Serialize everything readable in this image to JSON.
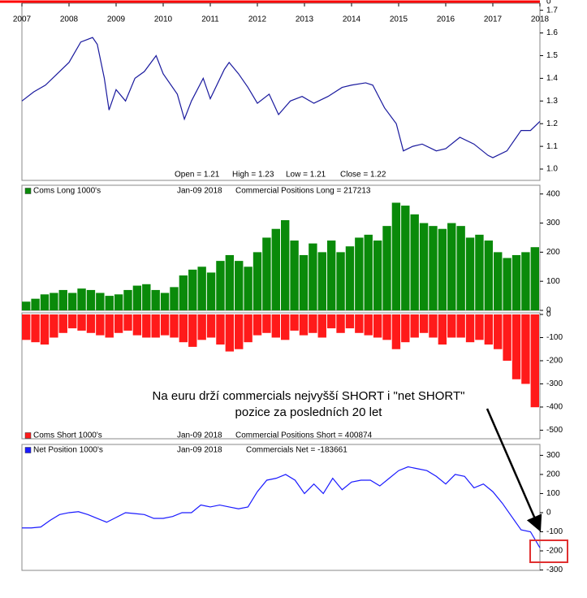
{
  "chart_data": [
    {
      "type": "line",
      "ylim": [
        0,
        1
      ],
      "yticks": [
        0
      ],
      "color": "#ff0000"
    },
    {
      "type": "line",
      "color": "#1a1a9e",
      "x": [
        2007.0,
        2007.25,
        2007.5,
        2007.75,
        2008.0,
        2008.25,
        2008.5,
        2008.6,
        2008.75,
        2008.85,
        2009.0,
        2009.2,
        2009.4,
        2009.6,
        2009.85,
        2010.0,
        2010.3,
        2010.45,
        2010.6,
        2010.85,
        2011.0,
        2011.3,
        2011.4,
        2011.6,
        2011.8,
        2012.0,
        2012.25,
        2012.45,
        2012.7,
        2012.95,
        2013.2,
        2013.5,
        2013.8,
        2014.0,
        2014.3,
        2014.45,
        2014.7,
        2014.95,
        2015.1,
        2015.3,
        2015.5,
        2015.8,
        2016.0,
        2016.3,
        2016.6,
        2016.9,
        2017.0,
        2017.3,
        2017.6,
        2017.8,
        2018.0
      ],
      "values": [
        1.3,
        1.34,
        1.37,
        1.42,
        1.47,
        1.56,
        1.58,
        1.55,
        1.4,
        1.26,
        1.35,
        1.3,
        1.4,
        1.43,
        1.5,
        1.42,
        1.33,
        1.22,
        1.3,
        1.4,
        1.31,
        1.44,
        1.47,
        1.42,
        1.36,
        1.29,
        1.33,
        1.24,
        1.3,
        1.32,
        1.29,
        1.32,
        1.36,
        1.37,
        1.38,
        1.37,
        1.27,
        1.2,
        1.08,
        1.1,
        1.11,
        1.08,
        1.09,
        1.14,
        1.11,
        1.06,
        1.05,
        1.08,
        1.17,
        1.17,
        1.21
      ],
      "xlim": [
        2007,
        2018
      ],
      "xticks": [
        2007,
        2008,
        2009,
        2010,
        2011,
        2012,
        2013,
        2014,
        2015,
        2016,
        2017,
        2018
      ],
      "ylim": [
        0.95,
        1.731
      ],
      "yticks": [
        {
          "value": 1,
          "label": "1.0"
        },
        1.1,
        1.2,
        1.3,
        1.4,
        1.5,
        1.6,
        1.7
      ],
      "annotations": [
        "Open = 1.21",
        "High = 1.23",
        "Low = 1.21",
        "Close = 1.22"
      ]
    },
    {
      "type": "bar",
      "xlim": [
        2007,
        2018.2
      ],
      "x": [
        2007.0,
        2007.2,
        2007.4,
        2007.6,
        2007.8,
        2008.0,
        2008.2,
        2008.4,
        2008.6,
        2008.8,
        2009.0,
        2009.2,
        2009.4,
        2009.6,
        2009.8,
        2010.0,
        2010.2,
        2010.4,
        2010.6,
        2010.8,
        2011.0,
        2011.2,
        2011.4,
        2011.6,
        2011.8,
        2012.0,
        2012.2,
        2012.4,
        2012.6,
        2012.8,
        2013.0,
        2013.2,
        2013.4,
        2013.6,
        2013.8,
        2014.0,
        2014.2,
        2014.4,
        2014.6,
        2014.8,
        2015.0,
        2015.2,
        2015.4,
        2015.6,
        2015.8,
        2016.0,
        2016.2,
        2016.4,
        2016.6,
        2016.8,
        2017.0,
        2017.2,
        2017.4,
        2017.6,
        2017.8,
        2018.0
      ],
      "series": [
        {
          "name": "Coms Long 1000's",
          "color": "#0a8a0a",
          "values": [
            30,
            40,
            55,
            60,
            70,
            60,
            75,
            70,
            60,
            50,
            55,
            70,
            85,
            90,
            70,
            60,
            80,
            120,
            140,
            150,
            130,
            170,
            190,
            170,
            150,
            200,
            250,
            280,
            310,
            240,
            190,
            230,
            200,
            240,
            200,
            220,
            250,
            260,
            240,
            290,
            370,
            360,
            330,
            300,
            290,
            280,
            300,
            290,
            250,
            260,
            240,
            200,
            180,
            190,
            200,
            217.213
          ]
        }
      ],
      "ylim": [
        0,
        430
      ],
      "yticks": [
        0,
        100,
        200,
        300,
        400
      ],
      "annotations": [
        "Jan-09  2018",
        "Commercial Positions Long = 217213"
      ]
    },
    {
      "type": "bar",
      "xlim": [
        2007,
        2018.2
      ],
      "x": [
        2007.0,
        2007.2,
        2007.4,
        2007.6,
        2007.8,
        2008.0,
        2008.2,
        2008.4,
        2008.6,
        2008.8,
        2009.0,
        2009.2,
        2009.4,
        2009.6,
        2009.8,
        2010.0,
        2010.2,
        2010.4,
        2010.6,
        2010.8,
        2011.0,
        2011.2,
        2011.4,
        2011.6,
        2011.8,
        2012.0,
        2012.2,
        2012.4,
        2012.6,
        2012.8,
        2013.0,
        2013.2,
        2013.4,
        2013.6,
        2013.8,
        2014.0,
        2014.2,
        2014.4,
        2014.6,
        2014.8,
        2015.0,
        2015.2,
        2015.4,
        2015.6,
        2015.8,
        2016.0,
        2016.2,
        2016.4,
        2016.6,
        2016.8,
        2017.0,
        2017.2,
        2017.4,
        2017.6,
        2017.8,
        2018.0
      ],
      "series": [
        {
          "name": "Coms Short 1000's",
          "color": "#ff1a1a",
          "values": [
            -110,
            -120,
            -130,
            -100,
            -80,
            -60,
            -70,
            -80,
            -90,
            -100,
            -80,
            -70,
            -90,
            -100,
            -100,
            -90,
            -100,
            -120,
            -140,
            -110,
            -100,
            -130,
            -160,
            -150,
            -120,
            -90,
            -80,
            -100,
            -110,
            -70,
            -90,
            -80,
            -100,
            -60,
            -80,
            -60,
            -80,
            -90,
            -100,
            -110,
            -150,
            -120,
            -100,
            -80,
            -100,
            -130,
            -100,
            -100,
            -120,
            -110,
            -130,
            -150,
            -200,
            -280,
            -300,
            -400.874
          ]
        }
      ],
      "ylim": [
        -537,
        7
      ],
      "yticks": [
        0,
        -100,
        -200,
        -300,
        -400,
        -500
      ],
      "annotations": [
        "Jan-09  2018",
        "Commercial Positions Short = 400874"
      ]
    },
    {
      "type": "line",
      "xlim": [
        2007,
        2018
      ],
      "x": [
        2007.0,
        2007.2,
        2007.4,
        2007.6,
        2007.8,
        2008.0,
        2008.2,
        2008.4,
        2008.6,
        2008.8,
        2009.0,
        2009.2,
        2009.4,
        2009.6,
        2009.8,
        2010.0,
        2010.2,
        2010.4,
        2010.6,
        2010.8,
        2011.0,
        2011.2,
        2011.4,
        2011.6,
        2011.8,
        2012.0,
        2012.2,
        2012.4,
        2012.6,
        2012.8,
        2013.0,
        2013.2,
        2013.4,
        2013.6,
        2013.8,
        2014.0,
        2014.2,
        2014.4,
        2014.6,
        2014.8,
        2015.0,
        2015.2,
        2015.4,
        2015.6,
        2015.8,
        2016.0,
        2016.2,
        2016.4,
        2016.6,
        2016.8,
        2017.0,
        2017.2,
        2017.4,
        2017.6,
        2017.8,
        2018.0
      ],
      "series": [
        {
          "name": "Net Position 1000's",
          "color": "#1a1aff",
          "values": [
            -80,
            -80,
            -75,
            -40,
            -10,
            0,
            5,
            -10,
            -30,
            -50,
            -25,
            0,
            -5,
            -10,
            -30,
            -30,
            -20,
            0,
            0,
            40,
            30,
            40,
            30,
            20,
            30,
            110,
            170,
            180,
            200,
            170,
            100,
            150,
            100,
            180,
            120,
            160,
            170,
            170,
            140,
            180,
            220,
            240,
            230,
            220,
            190,
            150,
            200,
            190,
            130,
            150,
            110,
            50,
            -20,
            -90,
            -100,
            -183.661
          ]
        }
      ],
      "ylim": [
        -302,
        357
      ],
      "yticks": [
        300,
        200,
        100,
        0,
        -100,
        -200,
        -300
      ],
      "annotations": [
        "Jan-09  2018",
        "Commercials Net = -183661"
      ]
    }
  ],
  "annotation": [
    "Na euru drží commercials nejvyšší SHORT i \"net SHORT\"",
    "pozice za posledních 20 let"
  ]
}
